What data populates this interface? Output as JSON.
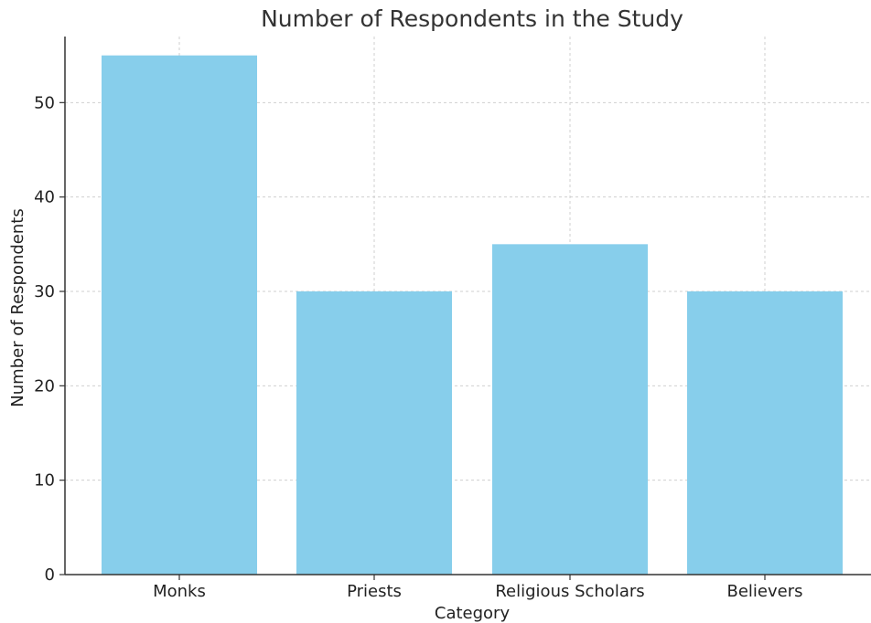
{
  "chart_data": {
    "type": "bar",
    "title": "Number of Respondents in the Study",
    "xlabel": "Category",
    "ylabel": "Number of Respondents",
    "categories": [
      "Monks",
      "Priests",
      "Religious Scholars",
      "Believers"
    ],
    "values": [
      55,
      30,
      35,
      30
    ],
    "ylim": [
      0,
      57
    ],
    "yticks": [
      0,
      10,
      20,
      30,
      40,
      50
    ],
    "grid": true,
    "bar_color": "#87ceeb",
    "legend": null
  }
}
